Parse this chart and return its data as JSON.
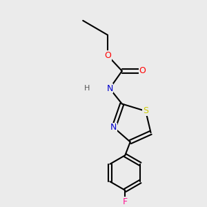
{
  "background_color": "#ebebeb",
  "bond_color": "#000000",
  "bond_lw": 1.5,
  "atom_colors": {
    "O": "#ff0000",
    "N": "#0000cc",
    "S": "#cccc00",
    "F": "#ff1493",
    "C": "#000000",
    "H": "#555555"
  },
  "font_size": 9,
  "font_size_small": 8
}
